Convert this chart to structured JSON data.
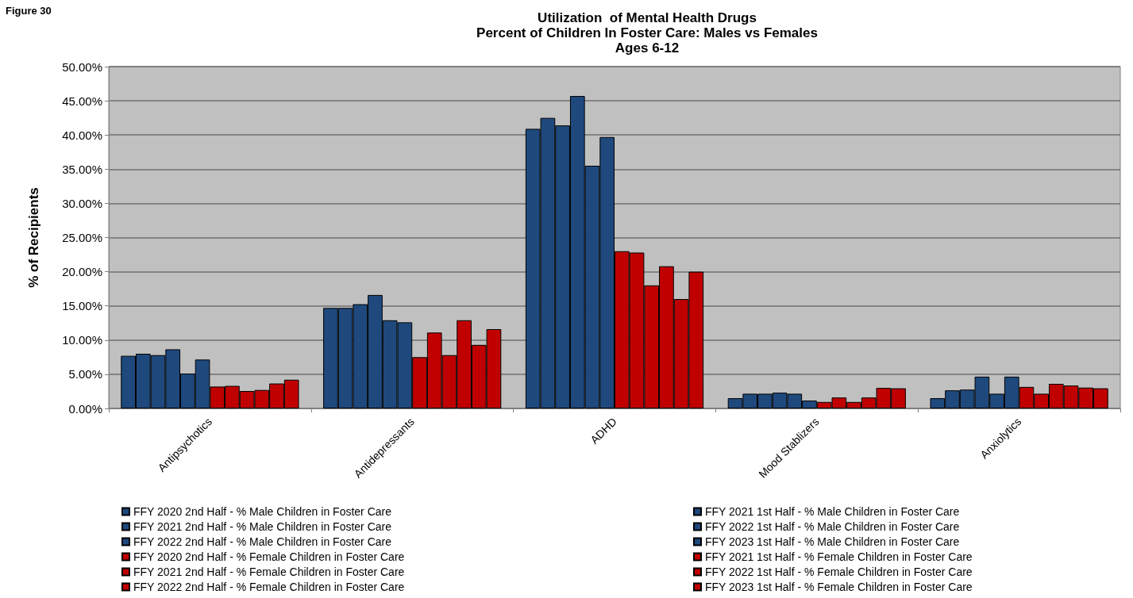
{
  "chart_data": {
    "type": "bar",
    "title": "Utilization  of Mental Health Drugs\nPercent of Children In Foster Care: Males vs Females\nAges 6-12",
    "ylabel": "% of Recipients",
    "annotations": [
      "Figure 30"
    ],
    "categories": [
      "Antipsychotics",
      "Antidepressants",
      "ADHD",
      "Mood Stablizers",
      "Anxiolytics"
    ],
    "ylim": [
      0,
      50
    ],
    "yticks": [
      {
        "value": 0,
        "label": "0.00%"
      },
      {
        "value": 5,
        "label": "5.00%"
      },
      {
        "value": 10,
        "label": "10.00%"
      },
      {
        "value": 15,
        "label": "15.00%"
      },
      {
        "value": 20,
        "label": "20.00%"
      },
      {
        "value": 25,
        "label": "25.00%"
      },
      {
        "value": 30,
        "label": "30.00%"
      },
      {
        "value": 35,
        "label": "35.00%"
      },
      {
        "value": 40,
        "label": "40.00%"
      },
      {
        "value": 45,
        "label": "45.00%"
      },
      {
        "value": 50,
        "label": "50.00%"
      }
    ],
    "grid": "y",
    "legend": "bottom",
    "series": [
      {
        "name": "FFY 2020 2nd Half - % Male Children in Foster Care",
        "color": "#1f497d",
        "values": [
          7.7,
          14.7,
          40.9,
          1.5,
          1.5
        ]
      },
      {
        "name": "FFY 2021 1st Half - % Male Children in Foster Care",
        "color": "#1f497d",
        "values": [
          8.0,
          14.7,
          42.5,
          2.15,
          2.65
        ]
      },
      {
        "name": "FFY 2021 2nd Half - % Male Children in Foster Care",
        "color": "#1f497d",
        "values": [
          7.8,
          15.25,
          41.4,
          2.15,
          2.75
        ]
      },
      {
        "name": "FFY 2022 1st Half - % Male Children in Foster Care",
        "color": "#1f497d",
        "values": [
          8.65,
          16.6,
          45.7,
          2.3,
          4.65
        ]
      },
      {
        "name": "FFY 2022 2nd Half - % Male Children in Foster Care",
        "color": "#1f497d",
        "values": [
          5.1,
          12.9,
          35.5,
          2.15,
          2.15
        ]
      },
      {
        "name": "FFY 2023 1st Half - % Male Children in Foster Care",
        "color": "#1f497d",
        "values": [
          7.15,
          12.6,
          39.7,
          1.15,
          4.65
        ]
      },
      {
        "name": "FFY 2020 2nd Half - % Female Children in Foster Care",
        "color": "#c00000",
        "values": [
          3.2,
          7.5,
          23.0,
          0.95,
          3.15
        ]
      },
      {
        "name": "FFY 2021 1st Half - % Female Children in Foster Care",
        "color": "#c00000",
        "values": [
          3.3,
          11.1,
          22.8,
          1.6,
          2.15
        ]
      },
      {
        "name": "FFY 2021 2nd Half - % Female Children in Foster Care",
        "color": "#c00000",
        "values": [
          2.55,
          7.8,
          18.0,
          0.95,
          3.6
        ]
      },
      {
        "name": "FFY 2022 1st Half - % Female Children in Foster Care",
        "color": "#c00000",
        "values": [
          2.7,
          12.9,
          20.8,
          1.6,
          3.35
        ]
      },
      {
        "name": "FFY 2022 2nd Half - % Female Children in Foster Care",
        "color": "#c00000",
        "values": [
          3.65,
          9.3,
          16.0,
          3.0,
          3.05
        ]
      },
      {
        "name": "FFY 2023 1st Half - % Female Children in Foster Care",
        "color": "#c00000",
        "values": [
          4.2,
          11.6,
          20.0,
          2.95,
          2.95
        ]
      }
    ]
  }
}
